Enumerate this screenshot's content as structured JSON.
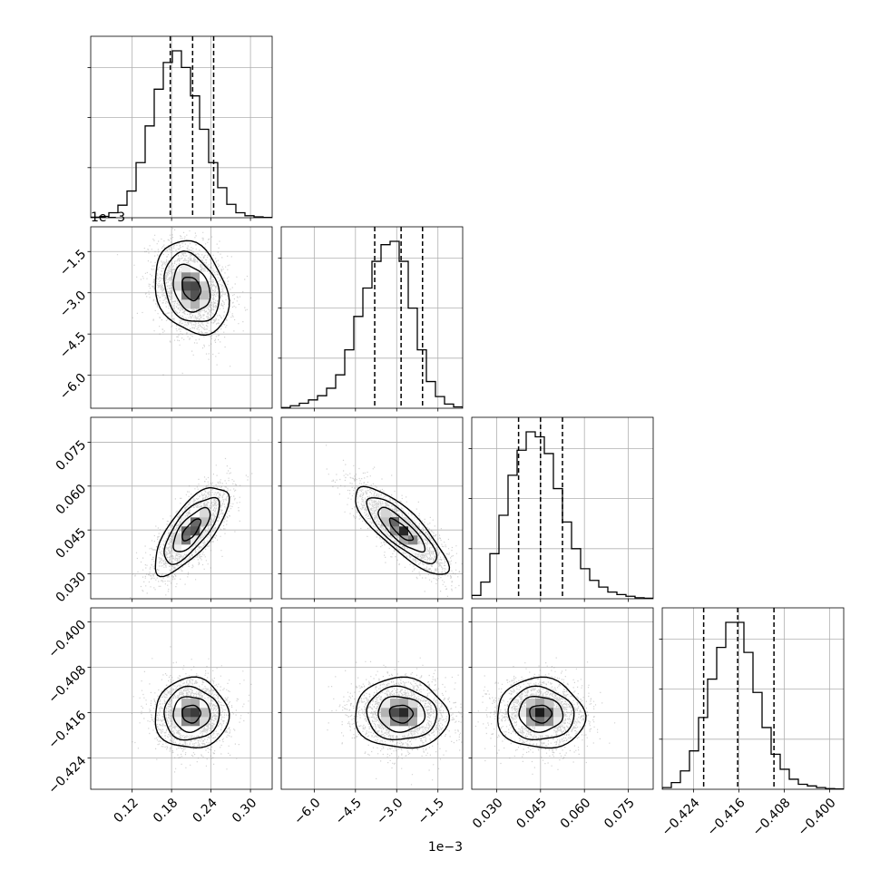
{
  "chart_data": {
    "type": "corner",
    "n_params": 4,
    "labels": [
      "",
      "",
      "",
      ""
    ],
    "offset_texts": {
      "y_axis_row1": "1e−3",
      "x_axis_col1": "1e−3"
    },
    "grid": true,
    "colors": {
      "line": "#000000",
      "grid": "#b0b0b0",
      "points": "#7f7f7f"
    },
    "axis_ranges": [
      [
        0.057,
        0.333
      ],
      [
        -7.2,
        -0.6
      ],
      [
        0.0215,
        0.0835
      ],
      [
        -0.4295,
        -0.3975
      ]
    ],
    "ticks": [
      {
        "values": [
          0.12,
          0.18,
          0.24,
          0.3
        ],
        "labels": [
          "0.12",
          "0.18",
          "0.24",
          "0.30"
        ]
      },
      {
        "values": [
          -6.0,
          -4.5,
          -3.0,
          -1.5
        ],
        "labels": [
          "−6.0",
          "−4.5",
          "−3.0",
          "−1.5"
        ]
      },
      {
        "values": [
          0.03,
          0.045,
          0.06,
          0.075
        ],
        "labels": [
          "0.030",
          "0.045",
          "0.060",
          "0.075"
        ]
      },
      {
        "values": [
          -0.424,
          -0.416,
          -0.408,
          -0.4
        ],
        "labels": [
          "−0.424",
          "−0.416",
          "−0.408",
          "−0.400"
        ]
      }
    ],
    "quantiles": [
      [
        0.178,
        0.212,
        0.244
      ],
      [
        -3.8,
        -2.84,
        -2.06
      ],
      [
        0.0375,
        0.045,
        0.0525
      ],
      [
        -0.4222,
        -0.4162,
        -0.4098
      ]
    ],
    "marginals": [
      {
        "edges_start": 0.057,
        "bin_width": 0.0138,
        "heights": [
          0.003,
          0.008,
          0.03,
          0.075,
          0.16,
          0.33,
          0.55,
          0.77,
          0.93,
          1.0,
          0.9,
          0.73,
          0.53,
          0.33,
          0.18,
          0.08,
          0.03,
          0.012,
          0.005,
          0.002
        ]
      },
      {
        "edges_start": -7.2,
        "bin_width": 0.33,
        "heights": [
          0.004,
          0.015,
          0.03,
          0.05,
          0.075,
          0.12,
          0.2,
          0.35,
          0.55,
          0.72,
          0.88,
          0.98,
          1.0,
          0.88,
          0.6,
          0.35,
          0.16,
          0.07,
          0.025,
          0.008
        ]
      },
      {
        "edges_start": 0.0215,
        "bin_width": 0.0031,
        "heights": [
          0.02,
          0.1,
          0.27,
          0.5,
          0.74,
          0.89,
          1.0,
          0.97,
          0.87,
          0.66,
          0.46,
          0.3,
          0.18,
          0.11,
          0.07,
          0.04,
          0.025,
          0.015,
          0.006,
          0.003
        ]
      },
      {
        "edges_start": -0.4295,
        "bin_width": 0.0016,
        "heights": [
          0.01,
          0.04,
          0.11,
          0.23,
          0.43,
          0.66,
          0.85,
          1.0,
          1.0,
          0.82,
          0.58,
          0.37,
          0.21,
          0.12,
          0.06,
          0.03,
          0.02,
          0.01,
          0.004,
          0.002
        ]
      }
    ],
    "joints": [
      {
        "row": 1,
        "col": 0,
        "mean": [
          0.21,
          -2.84
        ],
        "sd": [
          0.028,
          0.85
        ],
        "rho": -0.25
      },
      {
        "row": 2,
        "col": 0,
        "mean": [
          0.21,
          0.045
        ],
        "sd": [
          0.028,
          0.0075
        ],
        "rho": 0.72
      },
      {
        "row": 2,
        "col": 1,
        "mean": [
          -2.84,
          0.045
        ],
        "sd": [
          0.85,
          0.0075
        ],
        "rho": -0.82
      },
      {
        "row": 3,
        "col": 0,
        "mean": [
          0.21,
          -0.4162
        ],
        "sd": [
          0.028,
          0.0031
        ],
        "rho": 0.0
      },
      {
        "row": 3,
        "col": 1,
        "mean": [
          -2.84,
          -0.4162
        ],
        "sd": [
          0.85,
          0.0031
        ],
        "rho": -0.05
      },
      {
        "row": 3,
        "col": 2,
        "mean": [
          0.045,
          -0.4162
        ],
        "sd": [
          0.0075,
          0.0031
        ],
        "rho": -0.05
      }
    ],
    "contour_levels_sigma": [
      0.5,
      1.0,
      1.5,
      2.0
    ]
  }
}
